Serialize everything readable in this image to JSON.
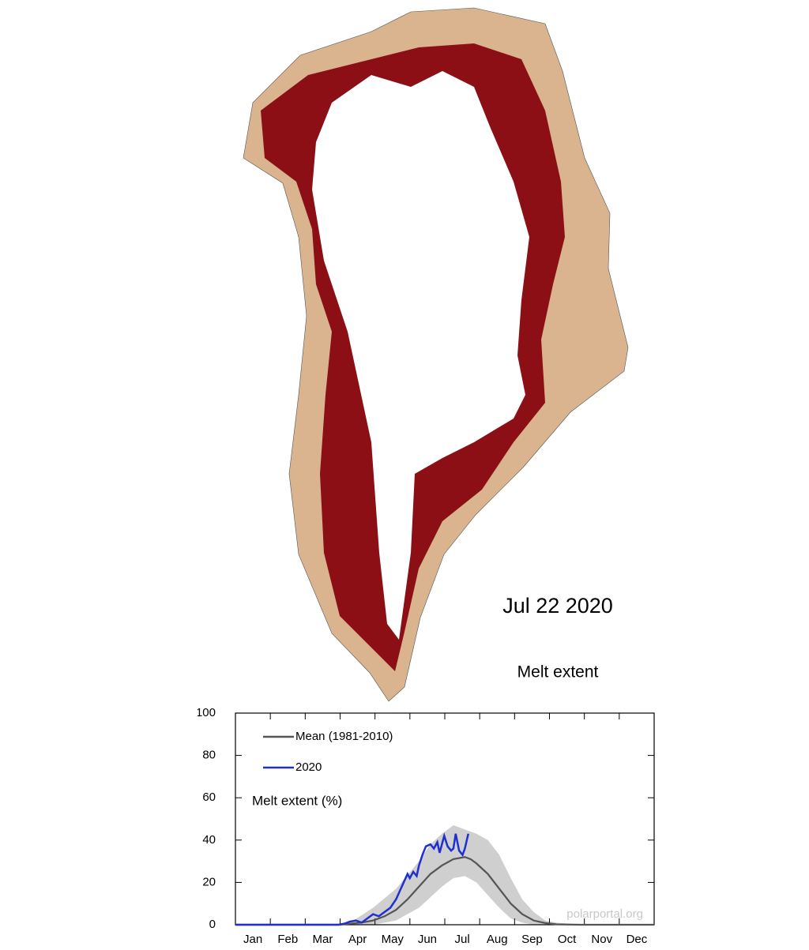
{
  "date": "Jul 22 2020",
  "chart_data": {
    "type": "line",
    "title": "Melt extent",
    "y_label": "Melt extent (%)",
    "watermark": "polarportal.org",
    "categories": [
      "Jan",
      "Feb",
      "Mar",
      "Apr",
      "May",
      "Jun",
      "Jul",
      "Aug",
      "Sep",
      "Oct",
      "Nov",
      "Dec"
    ],
    "xlim": [
      0,
      365
    ],
    "ylim": [
      0,
      100
    ],
    "yticks": [
      0,
      20,
      40,
      60,
      80,
      100
    ],
    "band": {
      "color": "#cfcfcf",
      "x": [
        90,
        100,
        120,
        140,
        160,
        170,
        180,
        190,
        200,
        210,
        220,
        230,
        240,
        250,
        260,
        270,
        280,
        300
      ],
      "low": [
        0,
        0,
        0,
        2,
        8,
        13,
        18,
        22,
        23,
        20,
        14,
        8,
        3,
        1,
        0,
        0,
        0,
        0
      ],
      "high": [
        0,
        1,
        8,
        17,
        30,
        38,
        43,
        47,
        45,
        43,
        40,
        33,
        22,
        12,
        6,
        2,
        1,
        0
      ]
    },
    "series": [
      {
        "name": "Mean (1981-2010)",
        "color": "#555555",
        "x": [
          0,
          90,
          100,
          110,
          120,
          130,
          140,
          150,
          160,
          170,
          180,
          190,
          200,
          205,
          210,
          220,
          230,
          240,
          250,
          260,
          270,
          280,
          300,
          365
        ],
        "values": [
          0,
          0,
          0.5,
          1,
          2,
          4,
          7,
          12,
          18,
          24,
          28,
          31,
          32,
          31,
          29,
          24,
          17,
          10,
          5,
          2,
          0.8,
          0.2,
          0,
          0
        ]
      },
      {
        "name": "2020",
        "color": "#1f2fd0",
        "x": [
          0,
          90,
          95,
          100,
          105,
          110,
          115,
          120,
          125,
          130,
          135,
          140,
          145,
          150,
          152,
          155,
          158,
          160,
          163,
          166,
          170,
          173,
          176,
          178,
          180,
          182,
          185,
          188,
          190,
          192,
          195,
          198,
          200,
          203
        ],
        "values": [
          0,
          0,
          0.5,
          1.5,
          2,
          1,
          3,
          5,
          4,
          6,
          8,
          12,
          18,
          24,
          22,
          25,
          23,
          28,
          33,
          37,
          38,
          36,
          39,
          34,
          38,
          42,
          37,
          35,
          36,
          43,
          35,
          33,
          36,
          43
        ]
      }
    ]
  }
}
